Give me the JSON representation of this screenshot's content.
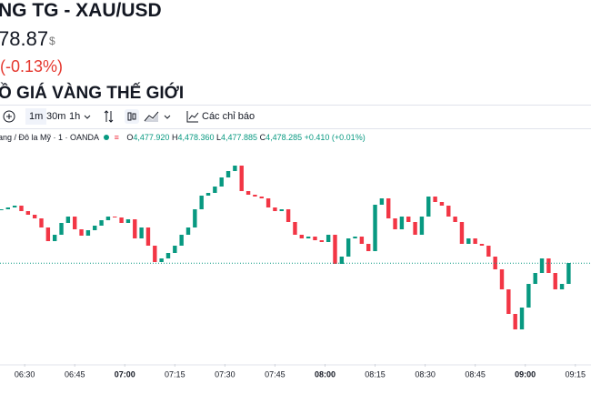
{
  "header": {
    "title": "NG TG - XAU/USD",
    "price": "78.87",
    "currency": "$",
    "change": "(-0.13%)",
    "section_title": "Ồ GIÁ VÀNG THẾ GIỚI"
  },
  "toolbar": {
    "intervals": [
      "1m",
      "30m",
      "1h"
    ],
    "indicators": "Các chỉ báo"
  },
  "legend": {
    "symbol": "ang / Đô la Mỹ · 1 · OANDA",
    "o_label": "O",
    "open": "4,477.920",
    "h_label": "H",
    "high": "4,478.360",
    "l_label": "L",
    "low": "4,477.885",
    "c_label": "C",
    "close": "4,478.285",
    "change": "+0.410 (+0.01%)"
  },
  "chart_data": {
    "type": "candlestick",
    "x": [
      383,
      385,
      387,
      389,
      391,
      393,
      395,
      397,
      399,
      401,
      403,
      405,
      407,
      409,
      411,
      413,
      415,
      417,
      419,
      421,
      423,
      425,
      427,
      429,
      431,
      433,
      435,
      437,
      439,
      441,
      443,
      445,
      447,
      449,
      451,
      453,
      455,
      457,
      459,
      461,
      463,
      465,
      467,
      469,
      471,
      473,
      475,
      477,
      479,
      481,
      483,
      485,
      487,
      489,
      491,
      493,
      495,
      497,
      499,
      501,
      503,
      505,
      507,
      509,
      511,
      513,
      515,
      517,
      519,
      521,
      523,
      525,
      527,
      529,
      531,
      533,
      535,
      537,
      539,
      541,
      543,
      545,
      547,
      549,
      551,
      553
    ],
    "close": [
      4481.25,
      4481.35,
      4481.45,
      4481.15,
      4480.95,
      4480.75,
      4480.25,
      4479.5,
      4479.85,
      4480.5,
      4480.85,
      4480.15,
      4479.8,
      4480.1,
      4480.35,
      4480.65,
      4480.85,
      4480.8,
      4480.5,
      4480.7,
      4479.65,
      4480.25,
      4479.25,
      4478.35,
      4478.55,
      4478.85,
      4479.25,
      4479.85,
      4480.25,
      4481.25,
      4482.0,
      4482.15,
      4482.5,
      4483.0,
      4483.35,
      4483.65,
      4482.25,
      4482.05,
      4481.95,
      4481.85,
      4481.35,
      4481.15,
      4481.25,
      4480.55,
      4479.85,
      4479.65,
      4479.75,
      4479.55,
      4479.45,
      4479.85,
      4478.25,
      4478.65,
      4479.65,
      4479.75,
      4479.35,
      4478.95,
      4481.5,
      4481.85,
      4480.75,
      4480.15,
      4480.85,
      4480.55,
      4479.85,
      4480.85,
      4481.95,
      4481.65,
      4481.45,
      4480.85,
      4480.55,
      4479.35,
      4479.65,
      4479.35,
      4479.25,
      4478.65,
      4477.95,
      4476.85,
      4475.5,
      4474.65,
      4475.85,
      4477.15,
      4477.75,
      4478.55,
      4477.75,
      4476.85,
      4477.15,
      4478.3
    ],
    "up_color": "#089981",
    "down_color": "#f23645",
    "last_price": 4478.285,
    "xlim": [
      382.6,
      559.7
    ],
    "ylim": [
      4472.75,
      4484.75
    ],
    "xticks": [
      {
        "value": 390,
        "label": "06:30"
      },
      {
        "value": 405,
        "label": "06:45"
      },
      {
        "value": 420,
        "label": "07:00"
      },
      {
        "value": 435,
        "label": "07:15"
      },
      {
        "value": 450,
        "label": "07:30"
      },
      {
        "value": 465,
        "label": "07:45"
      },
      {
        "value": 480,
        "label": "08:00"
      },
      {
        "value": 495,
        "label": "08:15"
      },
      {
        "value": 510,
        "label": "08:30"
      },
      {
        "value": 525,
        "label": "08:45"
      },
      {
        "value": 540,
        "label": "09:00"
      },
      {
        "value": 555,
        "label": "09:15"
      }
    ]
  }
}
